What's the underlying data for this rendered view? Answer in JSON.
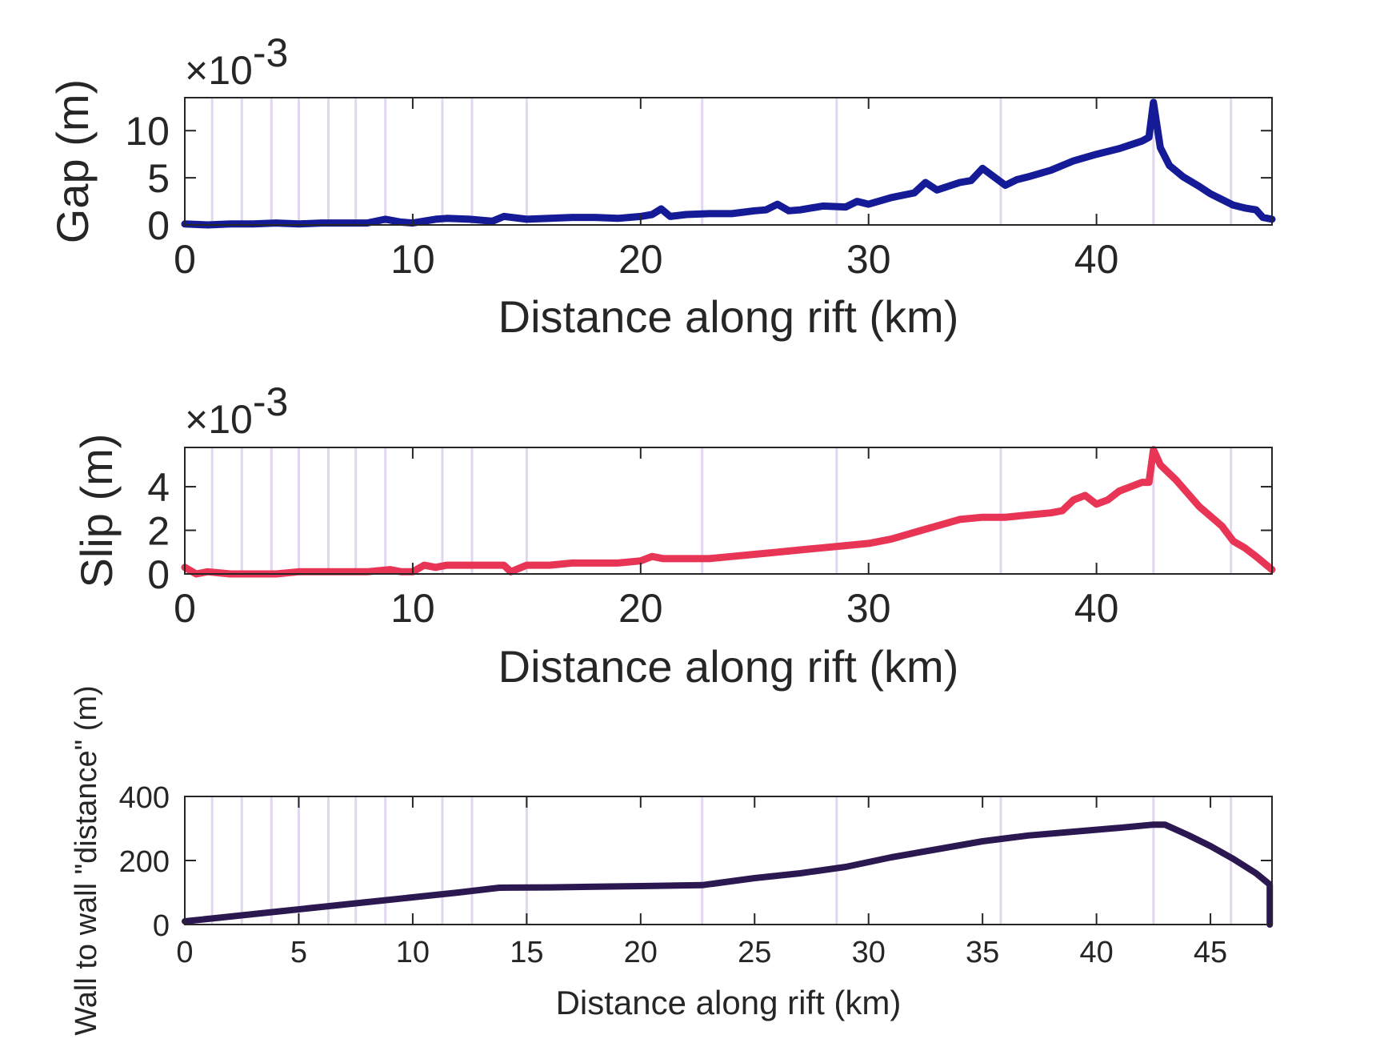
{
  "chart_data": [
    {
      "type": "line",
      "name": "gap",
      "ylabel": "Gap (m)",
      "xlabel": "Distance along rift (km)",
      "exponent_label": {
        "prefix": "×10",
        "power": "-3"
      },
      "xlim": [
        0,
        47.7
      ],
      "ylim": [
        0,
        0.0135
      ],
      "xticks": [
        0,
        10,
        20,
        30,
        40
      ],
      "xtick_labels": [
        "0",
        "10",
        "20",
        "30",
        "40"
      ],
      "yticks": [
        0,
        0.005,
        0.01
      ],
      "ytick_labels": [
        "0",
        "5",
        "10"
      ],
      "line_color": "#151b96",
      "vertical_lines": [
        1.2,
        2.5,
        3.8,
        5.0,
        6.3,
        7.5,
        8.8,
        11.3,
        12.6,
        15.0,
        22.7,
        28.6,
        35.8,
        42.5,
        45.9
      ],
      "vertical_line_color": "#e0d7ee",
      "series": [
        {
          "name": "Gap",
          "x": [
            0,
            1,
            2,
            3,
            4,
            5,
            6,
            7,
            8,
            8.8,
            9.5,
            10,
            11,
            11.5,
            12.5,
            13.5,
            14,
            15,
            16,
            17,
            18,
            19,
            20,
            20.5,
            20.9,
            21.3,
            22,
            23,
            24,
            25,
            25.5,
            26,
            26.5,
            27,
            28,
            29,
            29.5,
            30,
            31,
            32,
            32.5,
            33,
            34,
            34.5,
            35,
            35.5,
            36,
            36.5,
            37,
            38,
            39,
            40,
            41,
            42,
            42.3,
            42.5,
            42.8,
            43.2,
            43.8,
            44.5,
            45,
            45.5,
            46,
            46.5,
            47,
            47.3,
            47.7
          ],
          "y": [
            0.0001,
            0.0,
            0.0001,
            0.0001,
            0.0002,
            0.0001,
            0.0002,
            0.0002,
            0.0002,
            0.0006,
            0.0003,
            0.0002,
            0.0006,
            0.0007,
            0.0006,
            0.0004,
            0.0009,
            0.0006,
            0.0007,
            0.0008,
            0.0008,
            0.0007,
            0.0009,
            0.0011,
            0.0017,
            0.0009,
            0.0011,
            0.0012,
            0.0012,
            0.0015,
            0.0016,
            0.0022,
            0.0015,
            0.0016,
            0.002,
            0.0019,
            0.0025,
            0.0022,
            0.0029,
            0.0034,
            0.0045,
            0.0037,
            0.0045,
            0.0047,
            0.006,
            0.0051,
            0.0042,
            0.0048,
            0.0051,
            0.0058,
            0.0068,
            0.0075,
            0.0081,
            0.0089,
            0.0093,
            0.013,
            0.0082,
            0.0063,
            0.0051,
            0.0041,
            0.0033,
            0.0027,
            0.0021,
            0.0018,
            0.0016,
            0.0008,
            0.0006
          ]
        }
      ]
    },
    {
      "type": "line",
      "name": "slip",
      "ylabel": "Slip (m)",
      "xlabel": "Distance along rift (km)",
      "exponent_label": {
        "prefix": "×10",
        "power": "-3"
      },
      "xlim": [
        0,
        47.7
      ],
      "ylim": [
        0,
        0.0058
      ],
      "xticks": [
        0,
        10,
        20,
        30,
        40
      ],
      "xtick_labels": [
        "0",
        "10",
        "20",
        "30",
        "40"
      ],
      "yticks": [
        0,
        0.002,
        0.004
      ],
      "ytick_labels": [
        "0",
        "2",
        "4"
      ],
      "line_color": "#e83555",
      "vertical_lines": [
        1.2,
        2.5,
        3.8,
        5.0,
        6.3,
        7.5,
        8.8,
        11.3,
        12.6,
        15.0,
        22.7,
        28.6,
        35.8,
        42.5,
        45.9
      ],
      "vertical_line_color": "#e0d7ee",
      "series": [
        {
          "name": "Slip",
          "x": [
            0,
            0.5,
            1,
            2,
            3,
            4,
            5,
            6,
            7,
            8,
            9,
            9.5,
            10,
            10.5,
            11,
            11.5,
            12,
            13,
            14,
            14.3,
            15,
            16,
            17,
            18,
            19,
            20,
            20.5,
            21,
            22,
            23,
            24,
            25,
            26,
            27,
            28,
            29,
            30,
            31,
            32,
            33,
            34,
            35,
            36,
            37,
            38,
            38.5,
            39,
            39.5,
            40,
            40.5,
            41,
            42,
            42.3,
            42.5,
            42.8,
            43.5,
            44.5,
            45.5,
            46,
            46.5,
            47,
            47.7
          ],
          "y": [
            0.0003,
            0.0,
            0.0001,
            0.0,
            0.0,
            0.0,
            0.0001,
            0.0001,
            0.0001,
            0.0001,
            0.0002,
            0.0001,
            0.0001,
            0.0004,
            0.0003,
            0.0004,
            0.0004,
            0.0004,
            0.0004,
            0.0001,
            0.0004,
            0.0004,
            0.0005,
            0.0005,
            0.0005,
            0.0006,
            0.0008,
            0.0007,
            0.0007,
            0.0007,
            0.0008,
            0.0009,
            0.001,
            0.0011,
            0.0012,
            0.0013,
            0.0014,
            0.0016,
            0.0019,
            0.0022,
            0.0025,
            0.0026,
            0.0026,
            0.0027,
            0.0028,
            0.0029,
            0.0034,
            0.0036,
            0.0032,
            0.0034,
            0.0038,
            0.0042,
            0.0042,
            0.0057,
            0.005,
            0.0043,
            0.0031,
            0.0022,
            0.0015,
            0.0012,
            0.0008,
            0.0002
          ]
        }
      ]
    },
    {
      "type": "line",
      "name": "wall",
      "ylabel": "Wall to wall \"distance\" (m)",
      "xlabel": "Distance along rift (km)",
      "xlim": [
        0,
        47.7
      ],
      "ylim": [
        0,
        400
      ],
      "xticks": [
        0,
        5,
        10,
        15,
        20,
        25,
        30,
        35,
        40,
        45
      ],
      "xtick_labels": [
        "0",
        "5",
        "10",
        "15",
        "20",
        "25",
        "30",
        "35",
        "40",
        "45"
      ],
      "yticks": [
        0,
        200,
        400
      ],
      "ytick_labels": [
        "0",
        "200",
        "400"
      ],
      "line_color": "#2c1851",
      "vertical_lines": [
        1.2,
        2.5,
        3.8,
        5.0,
        6.3,
        7.5,
        8.8,
        11.3,
        12.6,
        15.0,
        22.7,
        28.6,
        35.8,
        42.5,
        45.9
      ],
      "vertical_line_color": "#e0d7ee",
      "series": [
        {
          "name": "Wall to wall distance",
          "x": [
            0,
            2,
            4,
            6,
            8,
            10,
            12,
            13.8,
            16,
            18,
            20,
            22.7,
            25,
            27,
            29,
            31,
            33,
            35,
            37,
            39,
            41,
            42.5,
            43.0,
            44,
            45,
            46,
            47,
            47.6,
            47.6
          ],
          "y": [
            10,
            25,
            40,
            55,
            70,
            85,
            100,
            115,
            116,
            118,
            120,
            123,
            145,
            160,
            180,
            210,
            235,
            260,
            278,
            290,
            302,
            312,
            312,
            280,
            245,
            205,
            160,
            125,
            0
          ]
        }
      ]
    }
  ]
}
